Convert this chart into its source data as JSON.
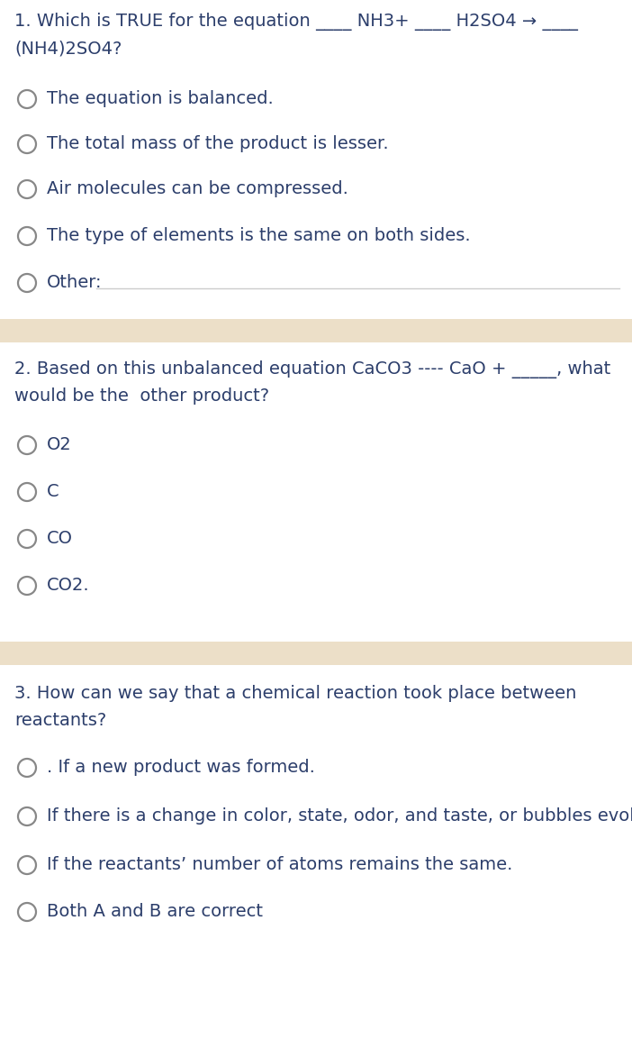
{
  "bg_color": "#ffffff",
  "separator_color": "#ecdfc8",
  "text_color": "#2c3e6b",
  "circle_color": "#888888",
  "line_color": "#cccccc",
  "q1_title_line1": "1. Which is TRUE for the equation ____ NH3+ ____ H2SO4 → ____",
  "q1_title_line2": "(NH4)2SO4?",
  "q1_options": [
    "The equation is balanced.",
    "The total mass of the product is lesser.",
    "Air molecules can be compressed.",
    "The type of elements is the same on both sides.",
    "Other:"
  ],
  "q1_has_line": [
    false,
    false,
    false,
    false,
    true
  ],
  "q2_title_line1": "2. Based on this unbalanced equation CaCO3 ---- CaO + _____, what",
  "q2_title_line2": "would be the  other product?",
  "q2_options": [
    "O2",
    "C",
    "CO",
    "CO2."
  ],
  "q3_title_line1": "3. How can we say that a chemical reaction took place between",
  "q3_title_line2": "reactants?",
  "q3_options": [
    ". If a new product was formed.",
    "If there is a change in color, state, odor, and taste, or bubbles evolve.",
    "If the reactants’ number of atoms remains the same.",
    "Both A and B are correct"
  ],
  "fig_width": 7.02,
  "fig_height": 11.53,
  "dpi": 100
}
